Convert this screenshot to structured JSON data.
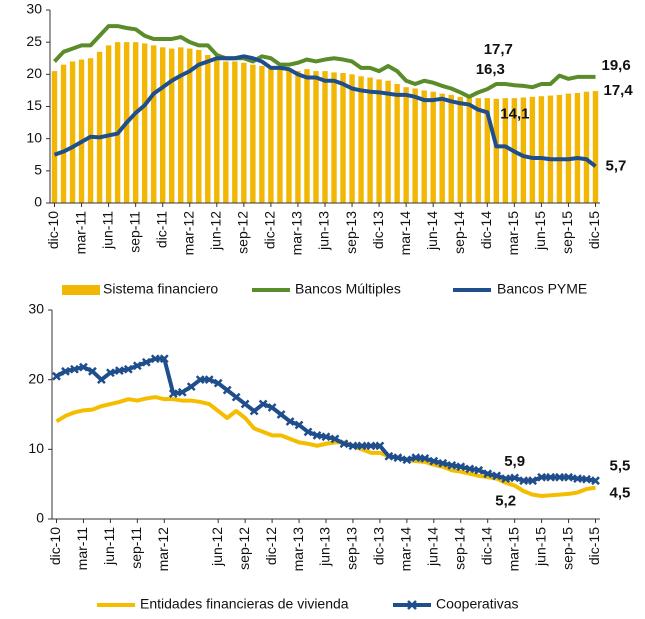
{
  "chart_data": [
    {
      "type": "bar",
      "categories": [
        "dic-10",
        null,
        null,
        "mar-11",
        null,
        null,
        "jun-11",
        null,
        null,
        "sep-11",
        null,
        null,
        "dic-11",
        null,
        null,
        "mar-12",
        null,
        null,
        "jun-12",
        null,
        null,
        "sep-12",
        null,
        null,
        "dic-12",
        null,
        null,
        "mar-13",
        null,
        null,
        "jun-13",
        null,
        null,
        "sep-13",
        null,
        null,
        "dic-13",
        null,
        null,
        "mar-14",
        null,
        null,
        "jun-14",
        null,
        null,
        "sep-14",
        null,
        null,
        "dic-14",
        null,
        null,
        "mar-15",
        null,
        null,
        "jun-15",
        null,
        null,
        "sep-15",
        null,
        null,
        "dic-15"
      ],
      "ylim": [
        0,
        30
      ],
      "yticks": [
        0,
        5,
        10,
        15,
        20,
        25,
        30
      ],
      "series": [
        {
          "name": "Sistema financiero",
          "type": "bar",
          "color": "#f2b705",
          "values": [
            20.5,
            21.5,
            22,
            22.3,
            22.5,
            23.5,
            24.5,
            25,
            25,
            25,
            24.8,
            24.5,
            24.2,
            24,
            24.2,
            24,
            23.8,
            23,
            22.5,
            22,
            22,
            21.8,
            21.5,
            21.3,
            21,
            20.8,
            20.8,
            20.5,
            20.8,
            20.5,
            20.5,
            20.3,
            20.2,
            20,
            19.7,
            19.5,
            19.2,
            19,
            18.5,
            18,
            17.8,
            17.5,
            17.3,
            17,
            16.8,
            16.5,
            16.3,
            16.3,
            16.3,
            16.2,
            16.3,
            16.3,
            16.4,
            16.5,
            16.6,
            16.7,
            16.8,
            17,
            17.1,
            17.3,
            17.4
          ],
          "value_labels": [
            null,
            null,
            null,
            null,
            null,
            null,
            null,
            null,
            null,
            null,
            null,
            null,
            null,
            null,
            null,
            null,
            null,
            null,
            null,
            null,
            null,
            null,
            null,
            null,
            null,
            null,
            null,
            null,
            null,
            null,
            null,
            null,
            null,
            null,
            null,
            null,
            null,
            null,
            null,
            null,
            null,
            null,
            null,
            null,
            null,
            null,
            null,
            null,
            "16,3",
            null,
            null,
            null,
            null,
            null,
            null,
            null,
            null,
            null,
            null,
            null,
            "17,4"
          ]
        },
        {
          "name": "Bancos Múltiples",
          "type": "line",
          "color": "#5b8c2a",
          "values": [
            22,
            23.5,
            24,
            24.5,
            24.5,
            26,
            27.5,
            27.5,
            27.2,
            27,
            26,
            25.5,
            25.5,
            25.5,
            25.8,
            25,
            24.5,
            24.5,
            23,
            22.5,
            22.5,
            22.5,
            22,
            22.8,
            22.5,
            21.5,
            21.5,
            21.8,
            22.3,
            22,
            22.3,
            22.5,
            22.3,
            22,
            21,
            21,
            20.5,
            21.3,
            20.5,
            19,
            18.5,
            19,
            18.7,
            18.2,
            17.8,
            17.2,
            16.5,
            17.2,
            17.7,
            18.5,
            18.5,
            18.3,
            18.2,
            18,
            18.5,
            18.5,
            19.8,
            19.3,
            19.6,
            19.6,
            19.6
          ],
          "value_labels": [
            null,
            null,
            null,
            null,
            null,
            null,
            null,
            null,
            null,
            null,
            null,
            null,
            null,
            null,
            null,
            null,
            null,
            null,
            null,
            null,
            null,
            null,
            null,
            null,
            null,
            null,
            null,
            null,
            null,
            null,
            null,
            null,
            null,
            null,
            null,
            null,
            null,
            null,
            null,
            null,
            null,
            null,
            null,
            null,
            null,
            null,
            null,
            null,
            "17,7",
            null,
            null,
            null,
            null,
            null,
            null,
            null,
            null,
            null,
            null,
            null,
            "19,6"
          ]
        },
        {
          "name": "Bancos PYME",
          "type": "line",
          "color": "#1f4e8c",
          "values": [
            7.5,
            8,
            8.7,
            9.5,
            10.3,
            10.2,
            10.5,
            10.8,
            12.5,
            14,
            15.2,
            17,
            18,
            19,
            19.8,
            20.5,
            21.5,
            22,
            22.5,
            22.5,
            22.5,
            22.8,
            22.5,
            22,
            21,
            21,
            20.8,
            20,
            19.5,
            19.5,
            19,
            19,
            18.5,
            17.8,
            17.5,
            17.3,
            17.2,
            17,
            16.8,
            16.8,
            16.5,
            16,
            16,
            16.2,
            15.8,
            15.5,
            15.3,
            14.5,
            14.1,
            8.8,
            8.8,
            8,
            7.3,
            7,
            7,
            6.8,
            6.8,
            6.8,
            7,
            6.8,
            5.7
          ],
          "value_labels": [
            null,
            null,
            null,
            null,
            null,
            null,
            null,
            null,
            null,
            null,
            null,
            null,
            null,
            null,
            null,
            null,
            null,
            null,
            null,
            null,
            null,
            null,
            null,
            null,
            null,
            null,
            null,
            null,
            null,
            null,
            null,
            null,
            null,
            null,
            null,
            null,
            null,
            null,
            null,
            null,
            null,
            null,
            null,
            null,
            null,
            null,
            null,
            null,
            "14,1",
            null,
            null,
            null,
            null,
            null,
            null,
            null,
            null,
            null,
            null,
            null,
            "5,7"
          ]
        }
      ]
    },
    {
      "type": "line",
      "categories": [
        "dic-10",
        null,
        null,
        "mar-11",
        null,
        null,
        "jun-11",
        null,
        null,
        "sep-11",
        null,
        null,
        "mar-12",
        null,
        null,
        null,
        null,
        null,
        "jun-12",
        null,
        null,
        "sep-12",
        null,
        null,
        "dic-12",
        null,
        null,
        "mar-13",
        null,
        null,
        "jun-13",
        null,
        null,
        "sep-13",
        null,
        null,
        "dic-13",
        null,
        null,
        "mar-14",
        null,
        null,
        "jun-14",
        null,
        null,
        "sep-14",
        null,
        null,
        "dic-14",
        null,
        null,
        "mar-15",
        null,
        null,
        "jun-15",
        null,
        null,
        "sep-15",
        null,
        null,
        "dic-15"
      ],
      "ylim": [
        0,
        30
      ],
      "yticks": [
        0,
        10,
        20,
        30
      ],
      "series": [
        {
          "name": "Entidades financieras de vivienda",
          "type": "line",
          "color": "#f5bd00",
          "values": [
            14,
            14.8,
            15.3,
            15.6,
            15.7,
            16.2,
            16.5,
            16.8,
            17.2,
            17,
            17.3,
            17.5,
            17.2,
            17.2,
            17,
            17,
            16.8,
            16.5,
            15.5,
            14.5,
            15.5,
            14.5,
            13,
            12.5,
            12,
            12,
            11.5,
            11,
            10.8,
            10.5,
            10.8,
            11,
            11,
            10.5,
            10,
            9.5,
            9.5,
            9,
            8.8,
            8.5,
            8.3,
            8.2,
            7.8,
            7.5,
            7,
            6.8,
            6.5,
            6.2,
            6,
            5.8,
            5.2,
            4.8,
            4,
            3.5,
            3.3,
            3.4,
            3.5,
            3.6,
            3.8,
            4.3,
            4.5
          ],
          "value_labels": [
            null,
            null,
            null,
            null,
            null,
            null,
            null,
            null,
            null,
            null,
            null,
            null,
            null,
            null,
            null,
            null,
            null,
            null,
            null,
            null,
            null,
            null,
            null,
            null,
            null,
            null,
            null,
            null,
            null,
            null,
            null,
            null,
            null,
            null,
            null,
            null,
            null,
            null,
            null,
            null,
            null,
            null,
            null,
            null,
            null,
            null,
            null,
            null,
            null,
            null,
            "5,2",
            null,
            null,
            null,
            null,
            null,
            null,
            null,
            null,
            null,
            "4,5"
          ]
        },
        {
          "name": "Cooperativas",
          "type": "line",
          "marker": "x",
          "color": "#1f4e8c",
          "values": [
            20.5,
            21.2,
            21.5,
            21.8,
            21.2,
            20,
            21,
            21.3,
            21.5,
            22,
            22.5,
            23,
            23,
            18,
            18.2,
            19,
            20,
            20,
            19.5,
            18.5,
            17.5,
            16.5,
            15.5,
            16.5,
            16,
            15,
            14,
            13.5,
            12.5,
            12,
            11.8,
            11.5,
            10.8,
            10.5,
            10.5,
            10.5,
            10.5,
            9,
            8.8,
            8.5,
            8.8,
            8.7,
            8.3,
            8,
            7.7,
            7.5,
            7.2,
            7,
            6.5,
            6.2,
            5.8,
            5.9,
            5.5,
            5.5,
            6,
            6,
            6,
            6,
            5.8,
            5.7,
            5.5
          ],
          "value_labels": [
            null,
            null,
            null,
            null,
            null,
            null,
            null,
            null,
            null,
            null,
            null,
            null,
            null,
            null,
            null,
            null,
            null,
            null,
            null,
            null,
            null,
            null,
            null,
            null,
            null,
            null,
            null,
            null,
            null,
            null,
            null,
            null,
            null,
            null,
            null,
            null,
            null,
            null,
            null,
            null,
            null,
            null,
            null,
            null,
            null,
            null,
            null,
            null,
            null,
            null,
            null,
            "5,9",
            null,
            null,
            null,
            null,
            null,
            null,
            null,
            null,
            "5,5"
          ]
        }
      ]
    }
  ]
}
